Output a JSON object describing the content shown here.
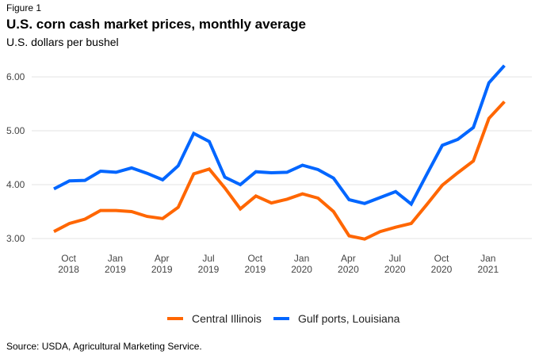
{
  "figure_label": "Figure 1",
  "title": "U.S. corn cash market prices, monthly average",
  "subtitle": "U.S. dollars per bushel",
  "source": "Source: USDA, Agricultural Marketing Service.",
  "chart_data": {
    "type": "line",
    "title": "U.S. corn cash market prices, monthly average",
    "subtitle": "U.S. dollars per bushel",
    "xlabel": "",
    "ylabel": "U.S. dollars per bushel",
    "ylim": [
      3.0,
      6.0
    ],
    "yticks": [
      "3.00",
      "4.00",
      "5.00",
      "6.00"
    ],
    "ytick_values": [
      3,
      4,
      5,
      6
    ],
    "grid": "horizontal",
    "legend_position": "bottom-center",
    "x": [
      "Sep 2018",
      "Oct 2018",
      "Nov 2018",
      "Dec 2018",
      "Jan 2019",
      "Feb 2019",
      "Mar 2019",
      "Apr 2019",
      "May 2019",
      "Jun 2019",
      "Jul 2019",
      "Aug 2019",
      "Sep 2019",
      "Oct 2019",
      "Nov 2019",
      "Dec 2019",
      "Jan 2020",
      "Feb 2020",
      "Mar 2020",
      "Apr 2020",
      "May 2020",
      "Jun 2020",
      "Jul 2020",
      "Aug 2020",
      "Sep 2020",
      "Oct 2020",
      "Nov 2020",
      "Dec 2020",
      "Jan 2021",
      "Feb 2021"
    ],
    "xticks": [
      {
        "index": 1,
        "line1": "Oct",
        "line2": "2018"
      },
      {
        "index": 4,
        "line1": "Jan",
        "line2": "2019"
      },
      {
        "index": 7,
        "line1": "Apr",
        "line2": "2019"
      },
      {
        "index": 10,
        "line1": "Jul",
        "line2": "2019"
      },
      {
        "index": 13,
        "line1": "Oct",
        "line2": "2019"
      },
      {
        "index": 16,
        "line1": "Jan",
        "line2": "2020"
      },
      {
        "index": 19,
        "line1": "Apr",
        "line2": "2020"
      },
      {
        "index": 22,
        "line1": "Jul",
        "line2": "2020"
      },
      {
        "index": 25,
        "line1": "Oct",
        "line2": "2020"
      },
      {
        "index": 28,
        "line1": "Jan",
        "line2": "2021"
      }
    ],
    "series": [
      {
        "name": "Central Illinois",
        "color": "#FF6600",
        "values": [
          3.13,
          3.28,
          3.36,
          3.52,
          3.52,
          3.5,
          3.41,
          3.37,
          3.58,
          4.2,
          4.29,
          3.94,
          3.55,
          3.79,
          3.66,
          3.73,
          3.83,
          3.75,
          3.5,
          3.05,
          2.99,
          3.13,
          3.21,
          3.28,
          3.63,
          3.99,
          4.22,
          4.44,
          5.23,
          5.54
        ]
      },
      {
        "name": "Gulf ports, Louisiana",
        "color": "#0066FF",
        "values": [
          3.92,
          4.07,
          4.08,
          4.25,
          4.23,
          4.31,
          4.21,
          4.09,
          4.35,
          4.95,
          4.8,
          4.14,
          4.0,
          4.24,
          4.22,
          4.23,
          4.36,
          4.28,
          4.12,
          3.72,
          3.65,
          3.76,
          3.87,
          3.64,
          4.19,
          4.73,
          4.84,
          5.06,
          5.89,
          6.21
        ]
      }
    ]
  }
}
